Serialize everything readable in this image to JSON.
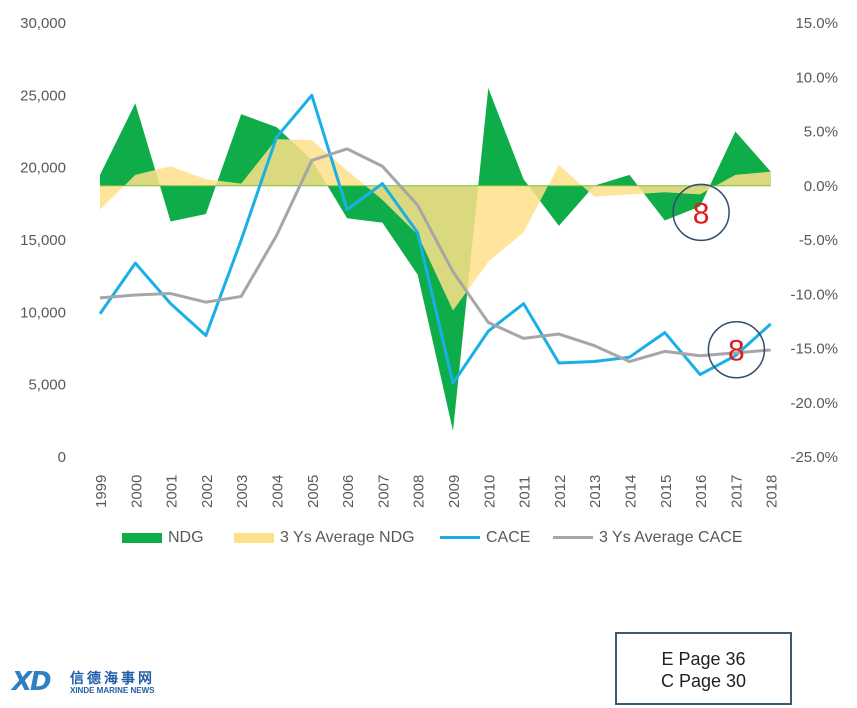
{
  "chart_data": {
    "type": "area",
    "categories": [
      "1999",
      "2000",
      "2001",
      "2002",
      "2003",
      "2004",
      "2005",
      "2006",
      "2007",
      "2008",
      "2009",
      "2010",
      "2011",
      "2012",
      "2013",
      "2014",
      "2015",
      "2016",
      "2017",
      "2018"
    ],
    "y_left": {
      "ylim": [
        0,
        30000
      ],
      "ticks": [
        "0",
        "5,000",
        "10,000",
        "15,000",
        "20,000",
        "25,000",
        "30,000"
      ]
    },
    "y_right": {
      "ylim": [
        -25,
        15
      ],
      "ticks": [
        "-25.0%",
        "-20.0%",
        "-15.0%",
        "-10.0%",
        "-5.0%",
        "0.0%",
        "5.0%",
        "10.0%",
        "15.0%"
      ]
    },
    "series": [
      {
        "name": "NDG",
        "axis": "right",
        "kind": "area",
        "color": "#0ead4a",
        "values": [
          1.0,
          7.6,
          -3.3,
          -2.6,
          6.6,
          5.4,
          2.4,
          -3.0,
          -3.4,
          -8.2,
          -22.6,
          9.0,
          0.6,
          -3.7,
          0.0,
          1.0,
          -3.2,
          -1.9,
          5.0,
          1.3
        ]
      },
      {
        "name": "3 Ys Average NDG",
        "axis": "right",
        "kind": "area",
        "color": "#ffe08a",
        "values": [
          -2.2,
          1.0,
          1.8,
          0.6,
          0.2,
          4.3,
          4.2,
          1.4,
          -1.3,
          -4.5,
          -11.5,
          -7.0,
          -4.3,
          1.9,
          -1.0,
          -0.8,
          -0.6,
          -0.8,
          1.0,
          1.3
        ]
      },
      {
        "name": "CACE",
        "axis": "left",
        "kind": "line",
        "color": "#1ab0e6",
        "values": [
          9900,
          13400,
          10600,
          8400,
          15000,
          22100,
          25000,
          17100,
          18900,
          15500,
          5100,
          8700,
          10600,
          6500,
          6600,
          6900,
          8600,
          5700,
          7000,
          9200
        ]
      },
      {
        "name": "3 Ys Average CACE",
        "axis": "left",
        "kind": "line",
        "color": "#a6a6a6",
        "values": [
          11000,
          11200,
          11300,
          10700,
          11100,
          15300,
          20500,
          21300,
          20100,
          17400,
          12800,
          9300,
          8200,
          8500,
          7700,
          6600,
          7300,
          7000,
          7200,
          7400
        ]
      }
    ],
    "annotations": [
      {
        "text": "8",
        "series": "NDG",
        "category": "2016",
        "color": "#e01a1a",
        "ring": "#2f4f6e"
      },
      {
        "text": "8",
        "series": "CACE",
        "category": "2017",
        "color": "#e01a1a",
        "ring": "#2f4f6e"
      }
    ],
    "legend_position": "bottom",
    "grid": false
  },
  "page_note": {
    "line1": "E Page 36",
    "line2": "C Page 30"
  },
  "logo": {
    "cn": "信德海事网",
    "en": "XINDE MARINE NEWS",
    "mark": "XD"
  }
}
